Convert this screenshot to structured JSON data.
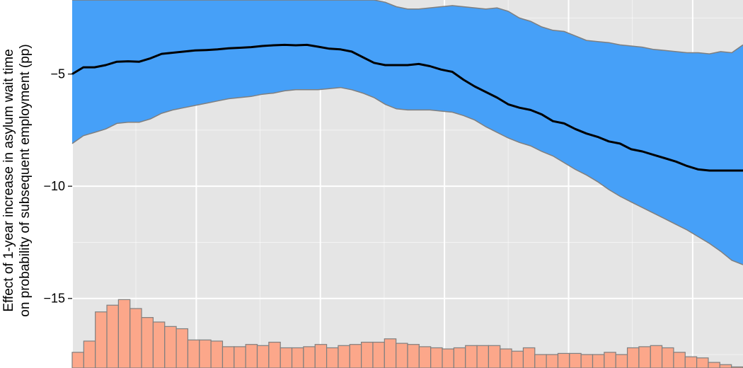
{
  "chart_data": {
    "type": "line",
    "title": "",
    "xlabel": "",
    "ylabel_lines": [
      "Effect of 1-year increase in asylum wait time",
      "on probability of subsequent employment (pp)"
    ],
    "grid": true,
    "ylim": [
      -18.1,
      -1.7
    ],
    "xlim": [
      0,
      1
    ],
    "yticks": [
      -5,
      -10,
      -15
    ],
    "ytick_labels": [
      "−5",
      "−10",
      "−15"
    ],
    "colors": {
      "panel": "#e5e5e5",
      "grid": "#ffffff",
      "band": "#46a0f8",
      "band_edge": "#7f7f7f",
      "line": "#000000",
      "bar": "#fca78a",
      "bar_edge": "#7f7f7f"
    },
    "series": [
      {
        "x": [
          0,
          0.0167,
          0.0333,
          0.05,
          0.0667,
          0.0833,
          0.1,
          0.1167,
          0.1333,
          0.15,
          0.1667,
          0.1833,
          0.2,
          0.2167,
          0.2333,
          0.25,
          0.2667,
          0.2833,
          0.3,
          0.3167,
          0.3333,
          0.35,
          0.3667,
          0.3833,
          0.4,
          0.4167,
          0.4333,
          0.45,
          0.4667,
          0.4833,
          0.5,
          0.5167,
          0.5333,
          0.55,
          0.5667,
          0.5833,
          0.6,
          0.6167,
          0.6333,
          0.65,
          0.6667,
          0.6833,
          0.7,
          0.7167,
          0.7333,
          0.75,
          0.7667,
          0.7833,
          0.8,
          0.8167,
          0.8333,
          0.85,
          0.8667,
          0.8833,
          0.9,
          0.9167,
          0.9333,
          0.95,
          0.9667,
          0.9833,
          1
        ],
        "y": [
          -5.0,
          -4.7,
          -4.7,
          -4.6,
          -4.45,
          -4.43,
          -4.45,
          -4.3,
          -4.1,
          -4.05,
          -4.0,
          -3.95,
          -3.93,
          -3.9,
          -3.85,
          -3.83,
          -3.8,
          -3.75,
          -3.72,
          -3.7,
          -3.72,
          -3.7,
          -3.78,
          -3.87,
          -3.9,
          -4.0,
          -4.25,
          -4.5,
          -4.6,
          -4.6,
          -4.6,
          -4.55,
          -4.65,
          -4.8,
          -4.9,
          -5.25,
          -5.55,
          -5.8,
          -6.05,
          -6.35,
          -6.5,
          -6.6,
          -6.8,
          -7.1,
          -7.2,
          -7.45,
          -7.65,
          -7.8,
          -8.0,
          -8.1,
          -8.35,
          -8.45,
          -8.6,
          -8.75,
          -8.9,
          -9.1,
          -9.25,
          -9.3,
          -9.3,
          -9.3,
          -9.3
        ]
      }
    ],
    "confidence_band": {
      "upper": [
        -1.7,
        -1.7,
        -1.7,
        -1.7,
        -1.7,
        -1.7,
        -1.7,
        -1.7,
        -1.7,
        -1.7,
        -1.7,
        -1.7,
        -1.7,
        -1.7,
        -1.7,
        -1.7,
        -1.7,
        -1.7,
        -1.7,
        -1.7,
        -1.7,
        -1.7,
        -1.7,
        -1.7,
        -1.7,
        -1.7,
        -1.7,
        -1.7,
        -1.8,
        -2.0,
        -2.1,
        -2.1,
        -2.05,
        -2.0,
        -1.95,
        -2.0,
        -2.05,
        -2.1,
        -2.05,
        -2.2,
        -2.5,
        -2.65,
        -2.9,
        -3.05,
        -3.1,
        -3.3,
        -3.5,
        -3.55,
        -3.6,
        -3.7,
        -3.75,
        -3.8,
        -3.9,
        -3.95,
        -4.0,
        -4.05,
        -4.05,
        -4.1,
        -4.0,
        -4.05,
        -3.7
      ],
      "lower": [
        -8.1,
        -7.75,
        -7.6,
        -7.45,
        -7.2,
        -7.15,
        -7.15,
        -7.0,
        -6.75,
        -6.6,
        -6.5,
        -6.4,
        -6.3,
        -6.2,
        -6.1,
        -6.05,
        -6.0,
        -5.9,
        -5.85,
        -5.75,
        -5.7,
        -5.7,
        -5.7,
        -5.65,
        -5.6,
        -5.7,
        -5.85,
        -6.05,
        -6.35,
        -6.55,
        -6.6,
        -6.6,
        -6.6,
        -6.65,
        -6.7,
        -6.85,
        -7.05,
        -7.35,
        -7.6,
        -7.85,
        -8.05,
        -8.2,
        -8.45,
        -8.65,
        -8.95,
        -9.25,
        -9.5,
        -9.8,
        -10.15,
        -10.45,
        -10.7,
        -10.95,
        -11.2,
        -11.45,
        -11.7,
        -11.95,
        -12.25,
        -12.55,
        -12.9,
        -13.3,
        -13.5
      ]
    },
    "histogram": {
      "bottom": -18.1,
      "values": [
        -17.4,
        -16.9,
        -15.6,
        -15.3,
        -15.05,
        -15.45,
        -15.85,
        -16.05,
        -16.25,
        -16.35,
        -16.85,
        -16.85,
        -16.9,
        -17.15,
        -17.15,
        -17.05,
        -17.1,
        -16.95,
        -17.2,
        -17.2,
        -17.15,
        -17.05,
        -17.2,
        -17.1,
        -17.05,
        -16.95,
        -16.95,
        -16.8,
        -17.0,
        -17.05,
        -17.15,
        -17.2,
        -17.25,
        -17.2,
        -17.1,
        -17.1,
        -17.1,
        -17.25,
        -17.35,
        -17.2,
        -17.5,
        -17.5,
        -17.45,
        -17.45,
        -17.5,
        -17.5,
        -17.4,
        -17.5,
        -17.2,
        -17.15,
        -17.1,
        -17.2,
        -17.4,
        -17.6,
        -17.65,
        -17.85,
        -17.95,
        -18.05
      ]
    }
  }
}
